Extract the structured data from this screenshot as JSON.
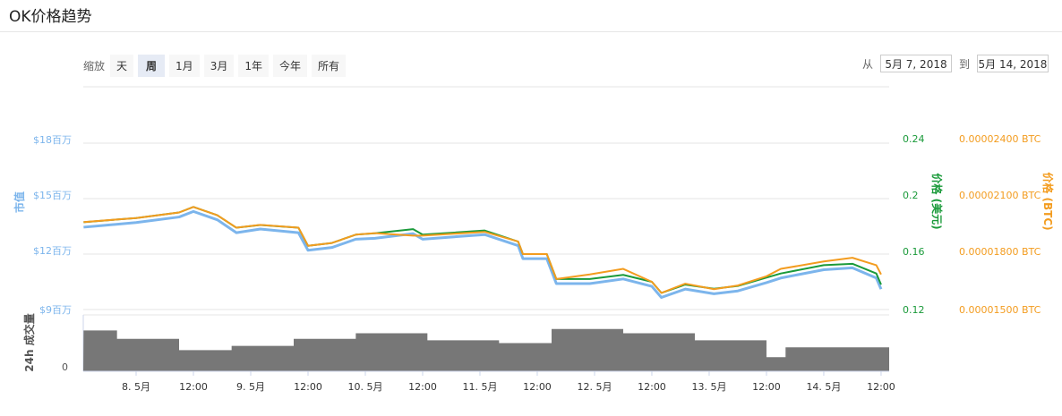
{
  "title": "OK价格趋势",
  "toolbar": {
    "zoom_label": "缩放",
    "buttons": [
      "天",
      "周",
      "1月",
      "3月",
      "1年",
      "今年",
      "所有"
    ],
    "selected": "周",
    "from_label": "从",
    "from_value": "5月 7, 2018",
    "to_label": "到",
    "to_value": "5月 14, 2018"
  },
  "colors": {
    "market_cap": "#7cb5ec",
    "price_usd": "#1a9a3a",
    "price_btc": "#f39c1f",
    "volume": "#777777",
    "grid": "#e6e6e6"
  },
  "chart_data": {
    "type": "line",
    "x_ticks": [
      "8. 5月",
      "12:00",
      "9. 5月",
      "12:00",
      "10. 5月",
      "12:00",
      "11. 5月",
      "12:00",
      "12. 5月",
      "12:00",
      "13. 5月",
      "12:00",
      "14. 5月",
      "12:00"
    ],
    "x_tick_times": [
      "2018-05-08 00:00",
      "2018-05-08 12:00",
      "2018-05-09 00:00",
      "2018-05-09 12:00",
      "2018-05-10 00:00",
      "2018-05-10 12:00",
      "2018-05-11 00:00",
      "2018-05-11 12:00",
      "2018-05-12 00:00",
      "2018-05-12 12:00",
      "2018-05-13 00:00",
      "2018-05-13 12:00",
      "2018-05-14 00:00",
      "2018-05-14 12:00"
    ],
    "axes": {
      "market_cap": {
        "label": "市值",
        "ticks": [
          "$18百万",
          "$15百万",
          "$12百万",
          "$9百万"
        ],
        "range": [
          9,
          18
        ]
      },
      "price_usd": {
        "label": "价格 (美元)",
        "ticks": [
          "0.24",
          "0.2",
          "0.16",
          "0.12"
        ],
        "range": [
          0.12,
          0.24
        ]
      },
      "price_btc": {
        "label": "价格 (BTC)",
        "ticks": [
          "0.00002400 BTC",
          "0.00002100 BTC",
          "0.00001800 BTC",
          "0.00001500 BTC"
        ],
        "range": [
          1.5e-05,
          2.4e-05
        ]
      },
      "volume": {
        "label": "24h 成交量",
        "ticks": [
          "0"
        ]
      }
    },
    "times": [
      "2018-05-07 13:00",
      "2018-05-08 00:00",
      "2018-05-08 09:00",
      "2018-05-08 12:00",
      "2018-05-08 17:00",
      "2018-05-08 21:00",
      "2018-05-09 02:00",
      "2018-05-09 10:00",
      "2018-05-09 12:00",
      "2018-05-09 17:00",
      "2018-05-09 22:00",
      "2018-05-10 02:00",
      "2018-05-10 10:00",
      "2018-05-10 12:00",
      "2018-05-11 01:00",
      "2018-05-11 08:00",
      "2018-05-11 09:00",
      "2018-05-11 14:00",
      "2018-05-11 16:00",
      "2018-05-11 23:00",
      "2018-05-12 06:00",
      "2018-05-12 12:00",
      "2018-05-12 14:00",
      "2018-05-12 19:00",
      "2018-05-13 01:00",
      "2018-05-13 06:00",
      "2018-05-13 12:00",
      "2018-05-13 15:00",
      "2018-05-14 00:00",
      "2018-05-14 06:00",
      "2018-05-14 11:00",
      "2018-05-14 12:00"
    ],
    "series": [
      {
        "key": "market_cap",
        "values": [
          13.6,
          13.85,
          14.15,
          14.45,
          14.0,
          13.3,
          13.5,
          13.3,
          12.35,
          12.5,
          12.95,
          13.0,
          13.25,
          12.95,
          13.2,
          12.6,
          11.9,
          11.9,
          10.55,
          10.55,
          10.8,
          10.4,
          9.8,
          10.25,
          10.0,
          10.15,
          10.6,
          10.85,
          11.3,
          11.4,
          10.85,
          10.25
        ]
      },
      {
        "key": "price_usd",
        "values": [
          0.183,
          0.186,
          0.19,
          0.194,
          0.188,
          0.179,
          0.181,
          0.179,
          0.166,
          0.168,
          0.174,
          0.175,
          0.178,
          0.174,
          0.177,
          0.169,
          0.16,
          0.16,
          0.142,
          0.142,
          0.145,
          0.14,
          0.132,
          0.138,
          0.135,
          0.137,
          0.143,
          0.146,
          0.152,
          0.153,
          0.146,
          0.138
        ]
      },
      {
        "key": "price_btc",
        "values": [
          1.973e-05,
          1.995e-05,
          2.025e-05,
          2.055e-05,
          2.01e-05,
          1.943e-05,
          1.958e-05,
          1.943e-05,
          1.845e-05,
          1.86e-05,
          1.905e-05,
          1.913e-05,
          1.9e-05,
          1.9e-05,
          1.92e-05,
          1.868e-05,
          1.8e-05,
          1.8e-05,
          1.665e-05,
          1.69e-05,
          1.72e-05,
          1.65e-05,
          1.59e-05,
          1.64e-05,
          1.61e-05,
          1.63e-05,
          1.68e-05,
          1.72e-05,
          1.76e-05,
          1.78e-05,
          1.74e-05,
          1.69e-05
        ]
      }
    ],
    "volume": {
      "times": [
        "2018-05-07 13:00",
        "2018-05-07 20:00",
        "2018-05-08 09:00",
        "2018-05-08 20:00",
        "2018-05-09 09:00",
        "2018-05-09 22:00",
        "2018-05-10 13:00",
        "2018-05-11 04:00",
        "2018-05-11 15:00",
        "2018-05-12 06:00",
        "2018-05-12 21:00",
        "2018-05-13 12:00",
        "2018-05-13 16:00",
        "2018-05-14 12:00"
      ],
      "values": [
        29,
        23,
        15,
        18,
        23,
        27,
        22,
        20,
        30,
        27,
        22,
        10,
        17,
        17
      ]
    }
  }
}
